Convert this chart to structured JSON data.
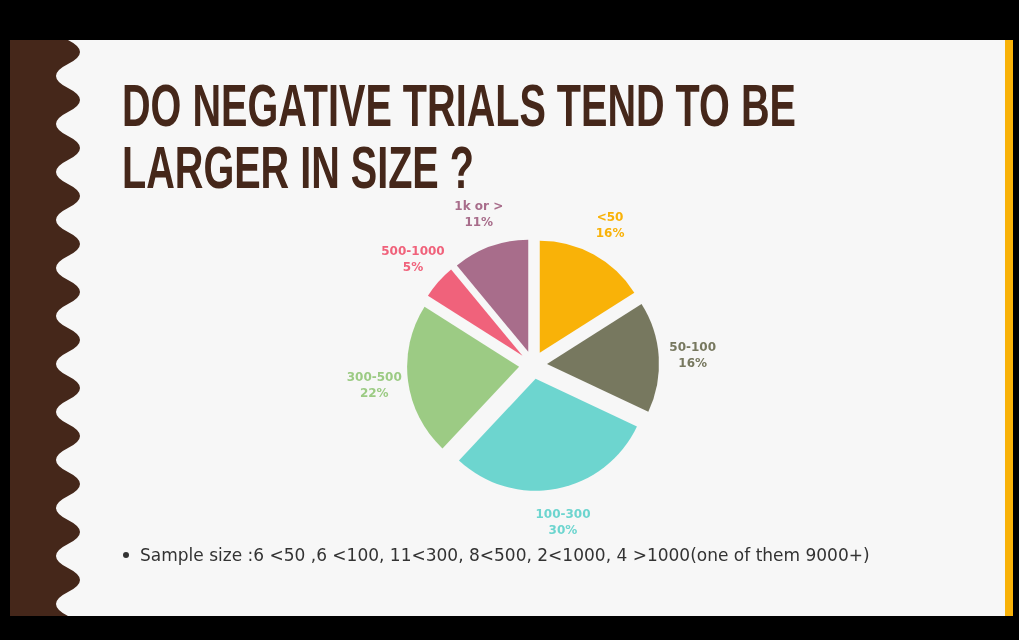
{
  "chart_data": {
    "type": "pie",
    "title": "DO NEGATIVE TRIALS TEND TO BE LARGER IN SIZE ?",
    "categories": [
      "<50",
      "50-100",
      "100-300",
      "300-500",
      "500-1000",
      "1k or >"
    ],
    "values": [
      16,
      16,
      30,
      22,
      5,
      11
    ],
    "value_labels": [
      "16%",
      "16%",
      "30%",
      "22%",
      "5%",
      "11%"
    ],
    "colors": [
      "#f9b208",
      "#77785f",
      "#6dd5cf",
      "#9ccb84",
      "#f0627b",
      "#a86d8b"
    ],
    "annotations": [
      "Sample size :6 <50 ,6 <100, 11<300, 8<500, 2<1000, 4 >1000(one of them 9000+)"
    ]
  }
}
